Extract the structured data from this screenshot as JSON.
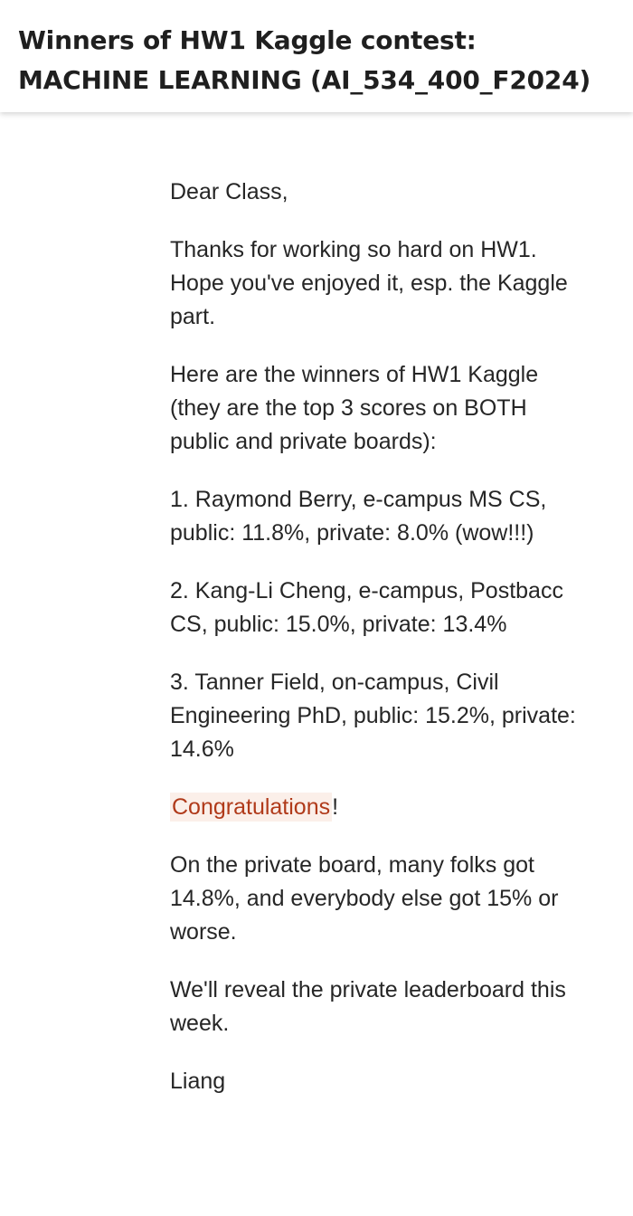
{
  "header": {
    "title": "Winners of HW1 Kaggle contest: MACHINE LEARNING (AI_534_400_F2024)"
  },
  "message": {
    "greeting": "Dear Class,",
    "intro": "Thanks for working so hard on HW1. Hope you've enjoyed it, esp. the Kaggle part.",
    "winners_intro": "Here are the winners of HW1 Kaggle (they are the top 3 scores on BOTH public and private boards):",
    "winners": [
      "1. Raymond Berry, e-campus MS CS, public: 11.8%, private: 8.0% (wow!!!)",
      "2. Kang-Li Cheng, e-campus, Postbacc CS, public: 15.0%, private: 13.4%",
      "3. Tanner Field, on-campus, Civil Engineering PhD, public: 15.2%, private:  14.6%"
    ],
    "congrats_word": "Congratulations",
    "congrats_punct": "!",
    "private_note": "On the private board, many folks got 14.8%, and everybody else got 15% or worse.",
    "reveal_note": "We'll reveal the private leaderboard this week.",
    "signature": "Liang"
  },
  "colors": {
    "highlight_text": "#b03a1a",
    "highlight_bg": "#fbefe9"
  }
}
